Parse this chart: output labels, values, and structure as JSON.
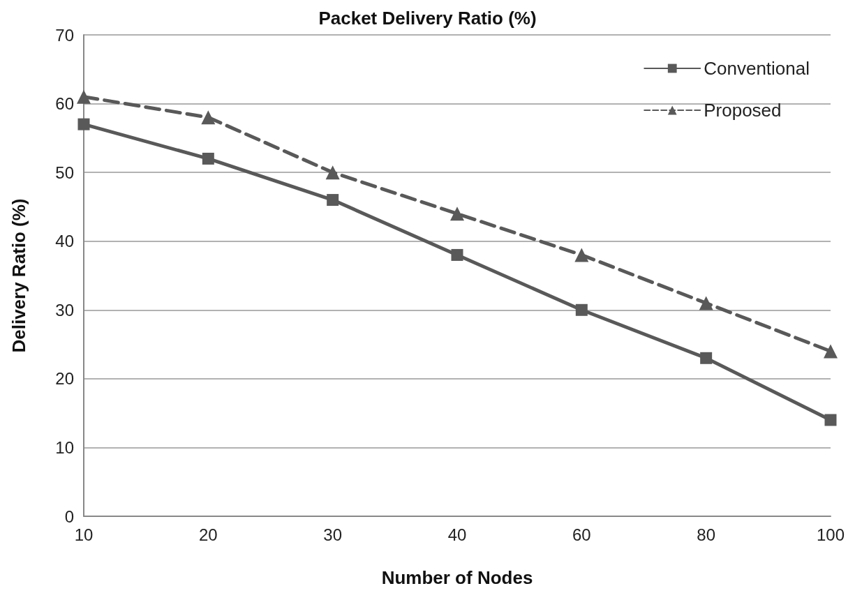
{
  "chart_data": {
    "type": "line",
    "title": "Packet Delivery Ratio (%)",
    "xlabel": "Number of Nodes",
    "ylabel": "Delivery Ratio (%)",
    "categories": [
      "10",
      "20",
      "30",
      "40",
      "60",
      "80",
      "100"
    ],
    "series": [
      {
        "name": "Conventional",
        "color": "#595959",
        "values": [
          57,
          52,
          46,
          38,
          30,
          23,
          14
        ],
        "marker": "square",
        "line_style": "solid"
      },
      {
        "name": "Proposed",
        "color": "#595959",
        "values": [
          61,
          58,
          50,
          44,
          38,
          31,
          24
        ],
        "marker": "triangle",
        "line_style": "dashed"
      }
    ],
    "ylim": [
      0,
      70
    ],
    "yticks": [
      0,
      10,
      20,
      30,
      40,
      50,
      60,
      70
    ],
    "grid": "y",
    "legend": "top right"
  }
}
